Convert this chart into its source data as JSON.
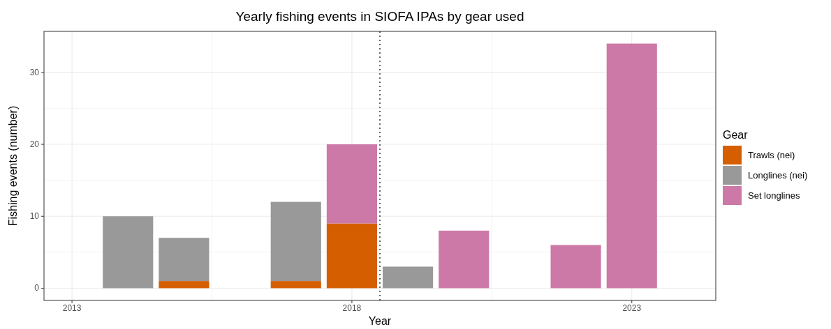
{
  "chart_data": {
    "type": "bar",
    "title": "Yearly fishing events in SIOFA IPAs by gear used",
    "xlabel": "Year",
    "ylabel": "Fishing events (number)",
    "legend_title": "Gear",
    "legend": "right",
    "stacked": true,
    "grid": true,
    "x": [
      2014,
      2015,
      2017,
      2018,
      2019,
      2020,
      2022,
      2023
    ],
    "series": [
      {
        "name": "Trawls (nei)",
        "color": "#d55e00",
        "values": [
          null,
          1,
          1,
          9,
          null,
          null,
          null,
          null
        ]
      },
      {
        "name": "Longlines (nei)",
        "color": "#999999",
        "values": [
          10,
          6,
          11,
          null,
          3,
          null,
          null,
          null
        ]
      },
      {
        "name": "Set longlines",
        "color": "#cc79a7",
        "values": [
          null,
          null,
          null,
          11,
          null,
          8,
          6,
          34
        ]
      }
    ],
    "xlim": [
      2012.5,
      2024.5
    ],
    "xticks": [
      2013,
      2018,
      2023
    ],
    "ylim": [
      -1.7,
      35.7
    ],
    "yticks": [
      0,
      10,
      20,
      30
    ],
    "ref_lines": [
      {
        "axis": "x",
        "value": 2018.5,
        "line_style": "dotted",
        "color": "#333333"
      }
    ]
  }
}
